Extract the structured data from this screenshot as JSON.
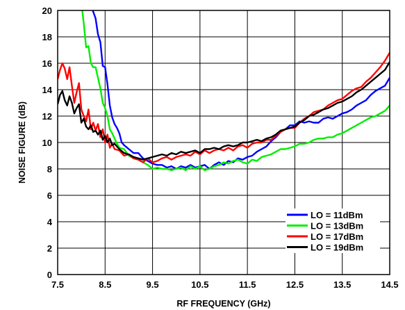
{
  "chart_data": {
    "type": "line",
    "title": "",
    "xlabel": "RF FREQUENCY (GHz)",
    "ylabel": "NOISE FIGURE (dB)",
    "xlim": [
      7.5,
      14.5
    ],
    "ylim": [
      0,
      20
    ],
    "xticks": [
      7.5,
      8.5,
      9.5,
      10.5,
      11.5,
      12.5,
      13.5,
      14.5
    ],
    "xtick_labels": [
      "7.5",
      "8.5",
      "9.5",
      "10.5",
      "11.5",
      "12.5",
      "13.5",
      "14.5"
    ],
    "yticks": [
      0,
      2,
      4,
      6,
      8,
      10,
      12,
      14,
      16,
      18,
      20
    ],
    "ytick_labels": [
      "0",
      "2",
      "4",
      "6",
      "8",
      "10",
      "12",
      "14",
      "16",
      "18",
      "20"
    ],
    "grid": true,
    "legend_position": "bottom-right",
    "series": [
      {
        "name": "LO = 11dBm",
        "color": "#0000ff",
        "x": [
          8.24,
          8.3,
          8.35,
          8.4,
          8.45,
          8.5,
          8.55,
          8.6,
          8.65,
          8.7,
          8.75,
          8.8,
          8.85,
          8.9,
          9.0,
          9.1,
          9.2,
          9.3,
          9.4,
          9.5,
          9.6,
          9.7,
          9.8,
          9.9,
          10.0,
          10.1,
          10.2,
          10.3,
          10.4,
          10.5,
          10.6,
          10.7,
          10.8,
          10.9,
          11.0,
          11.1,
          11.2,
          11.3,
          11.4,
          11.5,
          11.6,
          11.7,
          11.8,
          11.9,
          12.0,
          12.1,
          12.2,
          12.3,
          12.4,
          12.5,
          12.6,
          12.7,
          12.8,
          12.9,
          13.0,
          13.1,
          13.2,
          13.3,
          13.4,
          13.5,
          13.6,
          13.7,
          13.8,
          13.9,
          14.0,
          14.1,
          14.2,
          14.3,
          14.4,
          14.5
        ],
        "y": [
          20.0,
          19.4,
          18.2,
          17.6,
          15.8,
          15.7,
          14.4,
          12.8,
          11.9,
          11.4,
          11.1,
          10.7,
          10.0,
          9.8,
          9.5,
          9.2,
          9.2,
          8.8,
          8.6,
          8.4,
          8.3,
          8.3,
          8.1,
          8.2,
          8.0,
          8.2,
          8.1,
          8.3,
          8.1,
          8.2,
          8.3,
          8.0,
          8.3,
          8.5,
          8.3,
          8.6,
          8.5,
          8.8,
          8.7,
          8.9,
          9.0,
          9.3,
          9.5,
          9.7,
          10.1,
          10.4,
          10.8,
          11.0,
          11.3,
          11.3,
          11.6,
          11.5,
          11.6,
          11.5,
          11.5,
          11.8,
          11.9,
          11.8,
          12.0,
          12.2,
          12.3,
          12.5,
          12.8,
          13.0,
          13.2,
          13.6,
          13.9,
          14.1,
          14.3,
          14.9
        ]
      },
      {
        "name": "LO = 13dBm",
        "color": "#00ee00",
        "x": [
          8.02,
          8.05,
          8.1,
          8.15,
          8.2,
          8.25,
          8.3,
          8.35,
          8.4,
          8.45,
          8.5,
          8.55,
          8.6,
          8.65,
          8.7,
          8.75,
          8.8,
          8.9,
          9.0,
          9.1,
          9.2,
          9.3,
          9.4,
          9.5,
          9.6,
          9.7,
          9.8,
          9.9,
          10.0,
          10.1,
          10.2,
          10.3,
          10.4,
          10.5,
          10.6,
          10.7,
          10.8,
          10.9,
          11.0,
          11.1,
          11.2,
          11.3,
          11.4,
          11.5,
          11.6,
          11.7,
          11.8,
          11.9,
          12.0,
          12.1,
          12.2,
          12.3,
          12.4,
          12.5,
          12.6,
          12.7,
          12.8,
          12.9,
          13.0,
          13.1,
          13.2,
          13.3,
          13.4,
          13.5,
          13.6,
          13.7,
          13.8,
          13.9,
          14.0,
          14.1,
          14.2,
          14.3,
          14.4,
          14.5
        ],
        "y": [
          20.0,
          19.0,
          17.2,
          17.3,
          16.0,
          15.7,
          15.7,
          14.9,
          14.1,
          13.0,
          12.6,
          12.0,
          11.0,
          10.7,
          10.3,
          9.9,
          9.6,
          9.5,
          9.0,
          8.8,
          8.7,
          8.5,
          8.3,
          8.0,
          8.1,
          8.0,
          8.0,
          7.9,
          8.0,
          8.1,
          7.9,
          8.2,
          8.0,
          8.2,
          7.9,
          8.0,
          8.2,
          8.3,
          8.5,
          8.4,
          8.6,
          8.7,
          8.5,
          8.4,
          8.7,
          8.6,
          8.9,
          9.0,
          9.1,
          9.3,
          9.5,
          9.5,
          9.6,
          9.7,
          9.9,
          9.9,
          10.0,
          10.2,
          10.3,
          10.3,
          10.4,
          10.4,
          10.6,
          10.7,
          10.9,
          11.1,
          11.3,
          11.5,
          11.7,
          11.9,
          12.0,
          12.2,
          12.4,
          12.8
        ]
      },
      {
        "name": "LO = 17dBm",
        "color": "#ff0000",
        "x": [
          7.5,
          7.55,
          7.6,
          7.65,
          7.7,
          7.75,
          7.8,
          7.85,
          7.9,
          7.95,
          8.0,
          8.05,
          8.1,
          8.15,
          8.2,
          8.25,
          8.3,
          8.35,
          8.4,
          8.45,
          8.5,
          8.55,
          8.6,
          8.65,
          8.7,
          8.8,
          8.9,
          9.0,
          9.1,
          9.2,
          9.3,
          9.4,
          9.5,
          9.6,
          9.7,
          9.8,
          9.9,
          10.0,
          10.1,
          10.2,
          10.3,
          10.4,
          10.5,
          10.6,
          10.7,
          10.8,
          10.9,
          11.0,
          11.1,
          11.2,
          11.3,
          11.4,
          11.5,
          11.6,
          11.7,
          11.8,
          11.9,
          12.0,
          12.1,
          12.2,
          12.3,
          12.4,
          12.5,
          12.6,
          12.7,
          12.8,
          12.9,
          13.0,
          13.1,
          13.2,
          13.3,
          13.4,
          13.5,
          13.6,
          13.7,
          13.8,
          13.9,
          14.0,
          14.1,
          14.2,
          14.3,
          14.4,
          14.5
        ],
        "y": [
          14.8,
          15.5,
          16.0,
          15.6,
          14.8,
          15.7,
          14.3,
          13.0,
          13.8,
          14.5,
          12.5,
          12.0,
          11.6,
          12.5,
          11.0,
          11.5,
          10.9,
          11.4,
          10.4,
          11.0,
          10.0,
          10.6,
          9.6,
          9.9,
          9.5,
          9.4,
          9.0,
          9.1,
          8.8,
          8.7,
          8.5,
          8.8,
          8.5,
          8.6,
          8.8,
          8.9,
          8.7,
          8.9,
          9.0,
          9.1,
          9.0,
          9.3,
          9.1,
          9.4,
          9.2,
          9.4,
          9.5,
          9.4,
          9.6,
          9.4,
          9.7,
          9.8,
          9.6,
          9.9,
          10.0,
          10.0,
          10.2,
          10.2,
          10.5,
          10.8,
          11.0,
          11.1,
          11.1,
          11.5,
          11.8,
          12.0,
          12.3,
          12.4,
          12.5,
          12.8,
          13.0,
          13.2,
          13.3,
          13.6,
          13.9,
          14.1,
          14.2,
          14.6,
          14.9,
          15.3,
          15.7,
          16.2,
          16.8
        ]
      },
      {
        "name": "LO = 19dBm",
        "color": "#000000",
        "x": [
          7.5,
          7.55,
          7.6,
          7.65,
          7.7,
          7.75,
          7.8,
          7.85,
          7.9,
          7.95,
          8.0,
          8.05,
          8.1,
          8.15,
          8.2,
          8.25,
          8.3,
          8.35,
          8.4,
          8.45,
          8.5,
          8.55,
          8.6,
          8.65,
          8.7,
          8.8,
          8.9,
          9.0,
          9.1,
          9.2,
          9.3,
          9.4,
          9.5,
          9.6,
          9.7,
          9.8,
          9.9,
          10.0,
          10.1,
          10.2,
          10.3,
          10.4,
          10.5,
          10.6,
          10.7,
          10.8,
          10.9,
          11.0,
          11.1,
          11.2,
          11.3,
          11.4,
          11.5,
          11.6,
          11.7,
          11.8,
          11.9,
          12.0,
          12.1,
          12.2,
          12.3,
          12.4,
          12.5,
          12.6,
          12.7,
          12.8,
          12.9,
          13.0,
          13.1,
          13.2,
          13.3,
          13.4,
          13.5,
          13.6,
          13.7,
          13.8,
          13.9,
          14.0,
          14.1,
          14.2,
          14.3,
          14.4,
          14.5
        ],
        "y": [
          12.9,
          13.6,
          13.9,
          13.2,
          12.8,
          13.5,
          13.0,
          12.2,
          12.6,
          12.9,
          11.5,
          11.8,
          11.2,
          11.0,
          11.3,
          10.8,
          10.9,
          10.6,
          10.9,
          10.2,
          10.5,
          10.0,
          10.3,
          9.8,
          9.9,
          9.5,
          9.2,
          9.1,
          8.9,
          8.8,
          8.7,
          8.8,
          8.9,
          9.0,
          9.1,
          9.0,
          9.2,
          9.1,
          9.3,
          9.2,
          9.3,
          9.4,
          9.2,
          9.5,
          9.5,
          9.6,
          9.5,
          9.7,
          9.8,
          9.7,
          9.8,
          10.0,
          10.0,
          10.1,
          10.2,
          10.1,
          10.3,
          10.4,
          10.6,
          10.9,
          11.0,
          11.1,
          11.2,
          11.5,
          11.7,
          12.0,
          12.1,
          12.3,
          12.5,
          12.6,
          12.8,
          13.0,
          13.1,
          13.3,
          13.5,
          13.8,
          14.0,
          14.3,
          14.6,
          14.9,
          15.2,
          15.5,
          16.1
        ]
      }
    ]
  }
}
